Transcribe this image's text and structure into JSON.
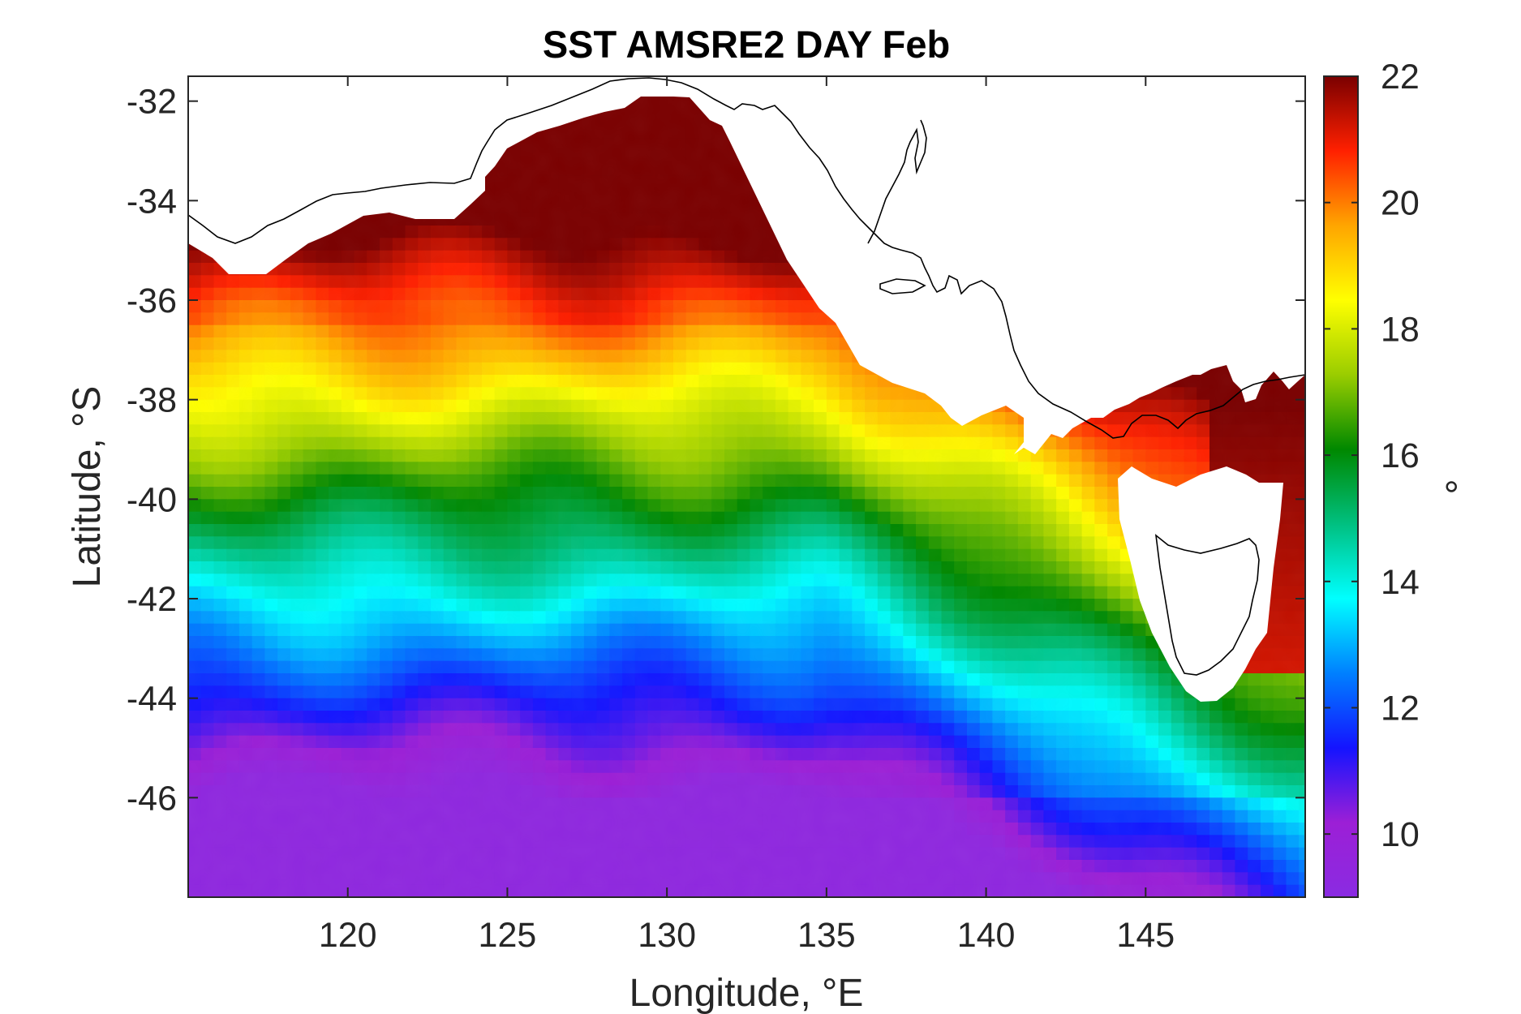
{
  "title": "SST AMSRE2 DAY Feb",
  "map": {
    "xlabel": "Longitude, °E",
    "ylabel": "Latitude, °S",
    "xlim": [
      115,
      150
    ],
    "ylim": [
      -48,
      -31.5
    ],
    "xticks": [
      120,
      125,
      130,
      135,
      140,
      145
    ],
    "xtick_labels": [
      "120",
      "125",
      "130",
      "135",
      "140",
      "145"
    ],
    "yticks": [
      -32,
      -34,
      -36,
      -38,
      -40,
      -42,
      -44,
      -46
    ],
    "ytick_labels": [
      "-32",
      "-34",
      "-36",
      "-38",
      "-40",
      "-42",
      "-44",
      "-46"
    ],
    "grid": false,
    "variable": "sea surface temperature",
    "field_summary": "warm (20-22) along southern Australian coast near 32-36°S, cooling southward through 18 at ~38°S, 16 at ~40.5°S, 14 at ~42°S, 12 at ~44°S to ~10 at 47-48°S; warm 20-22 water east of Tasmania"
  },
  "colorbar": {
    "label": "°",
    "limits": [
      9,
      22
    ],
    "ticks": [
      10,
      12,
      14,
      16,
      18,
      20,
      22
    ],
    "tick_labels": [
      "10",
      "12",
      "14",
      "16",
      "18",
      "20",
      "22"
    ],
    "colormap": [
      "#8a2be2",
      "#9c1fd6",
      "#1414ff",
      "#0080ff",
      "#00ffff",
      "#00c080",
      "#008800",
      "#9acd00",
      "#ffff00",
      "#ffa500",
      "#ff2000",
      "#7a0000"
    ]
  },
  "colors": {
    "land": "#ffffff",
    "coastline": "#000000",
    "axes": "#262626"
  }
}
